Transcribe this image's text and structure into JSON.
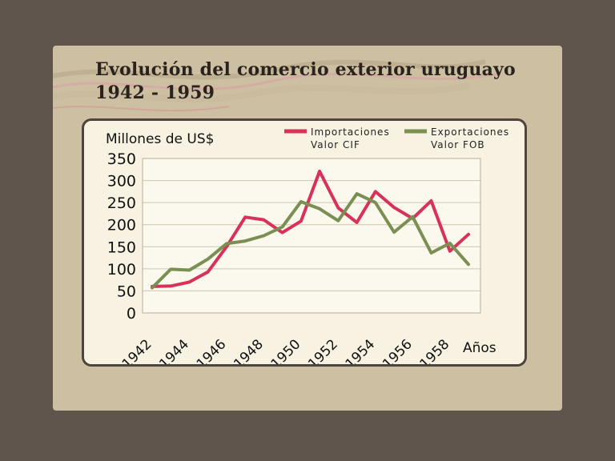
{
  "title": {
    "line1": "Evolución del comercio exterior uruguayo",
    "line2": "1942 - 1959"
  },
  "colors": {
    "importaciones": "#d6325a",
    "exportaciones": "#7a8f52"
  },
  "chart_data": {
    "type": "line",
    "ylabel": "Millones de US$",
    "xlabel": "Años",
    "ylim": [
      0,
      350
    ],
    "yticks": [
      0,
      50,
      100,
      150,
      200,
      250,
      300,
      350
    ],
    "xticks": [
      "1942",
      "1944",
      "1946",
      "1948",
      "1950",
      "1952",
      "1954",
      "1956",
      "1958"
    ],
    "x": [
      1942,
      1943,
      1944,
      1945,
      1946,
      1947,
      1948,
      1949,
      1950,
      1951,
      1952,
      1953,
      1954,
      1955,
      1956,
      1957,
      1958,
      1959
    ],
    "grid": true,
    "legend_position": "top-right",
    "series": [
      {
        "name_line1": "Importaciones",
        "name_line2": "Valor CIF",
        "color": "#d6325a",
        "values": [
          60,
          61,
          70,
          93,
          150,
          217,
          211,
          182,
          208,
          321,
          238,
          205,
          275,
          239,
          214,
          254,
          140,
          178
        ]
      },
      {
        "name_line1": "Exportaciones",
        "name_line2": "Valor FOB",
        "color": "#7a8f52",
        "values": [
          57,
          99,
          97,
          122,
          157,
          163,
          175,
          195,
          252,
          236,
          209,
          270,
          250,
          183,
          218,
          136,
          158,
          110
        ]
      }
    ]
  }
}
